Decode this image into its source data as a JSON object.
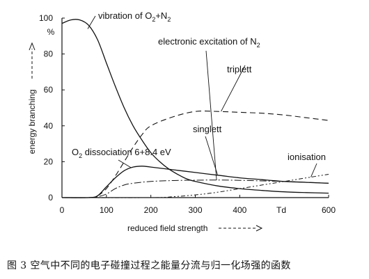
{
  "chart_data": {
    "type": "line",
    "xlabel": "reduced field strength",
    "xunit": "Td",
    "ylabel": "energy branching",
    "yunit": "%",
    "xlim": [
      0,
      600
    ],
    "ylim": [
      0,
      100
    ],
    "xticks": [
      0,
      100,
      200,
      300,
      400,
      600
    ],
    "yticks": [
      0,
      20,
      40,
      60,
      80,
      100
    ],
    "grid": false,
    "series": [
      {
        "name": "vibration of O2+N2",
        "x": [
          0,
          20,
          40,
          60,
          80,
          100,
          120,
          140,
          160,
          180,
          200,
          220,
          240,
          260,
          280,
          300,
          350,
          400,
          450,
          500,
          550,
          600
        ],
        "y": [
          97,
          99,
          99,
          96,
          88,
          75,
          62,
          50,
          40,
          32,
          25,
          20,
          16,
          13,
          10.5,
          9,
          6.5,
          5,
          4,
          3.2,
          2.8,
          2.5
        ]
      },
      {
        "name": "triplett",
        "x": [
          0,
          60,
          80,
          100,
          120,
          140,
          160,
          180,
          200,
          250,
          300,
          350,
          400,
          450,
          500,
          550,
          600
        ],
        "y": [
          0,
          0,
          1,
          5,
          12,
          20,
          28,
          35,
          40,
          45,
          48,
          48,
          47.5,
          47,
          46,
          44.5,
          43
        ]
      },
      {
        "name": "singlett",
        "x": [
          0,
          60,
          80,
          100,
          120,
          140,
          160,
          200,
          250,
          300,
          350,
          400,
          450,
          500,
          550,
          600
        ],
        "y": [
          0,
          0,
          0.5,
          2,
          5,
          7,
          8,
          9,
          9.5,
          9.7,
          9.8,
          9.6,
          9.3,
          9,
          8.5,
          8
        ]
      },
      {
        "name": "O2 dissociation 6+8.4 eV",
        "x": [
          0,
          60,
          80,
          100,
          120,
          140,
          160,
          180,
          200,
          250,
          300,
          350,
          400,
          450,
          500,
          550,
          600
        ],
        "y": [
          0,
          0,
          1,
          6,
          11,
          15,
          17,
          17.5,
          17,
          15.5,
          14,
          12.5,
          11,
          10,
          9,
          8.5,
          8
        ]
      },
      {
        "name": "ionisation",
        "x": [
          0,
          200,
          250,
          300,
          350,
          400,
          450,
          500,
          550,
          600
        ],
        "y": [
          0,
          0,
          0.5,
          1.5,
          3,
          5,
          7,
          9,
          11,
          13
        ]
      }
    ],
    "annotations": {
      "vibration_pre": "vibration of O",
      "vibration_sub1": "2",
      "vibration_mid": "+N",
      "vibration_sub2": "2",
      "electronic_pre": "electronic excitation of N",
      "electronic_sub": "2",
      "triplett": "triplett",
      "singlett": "singlett",
      "dissociation_pre": "O",
      "dissociation_sub": "2",
      "dissociation_post": " dissociation 6+8.4 eV",
      "ionisation": "ionisation"
    }
  },
  "caption": "图 3   空气中不同的电子碰撞过程之能量分流与归一化场强的函数"
}
